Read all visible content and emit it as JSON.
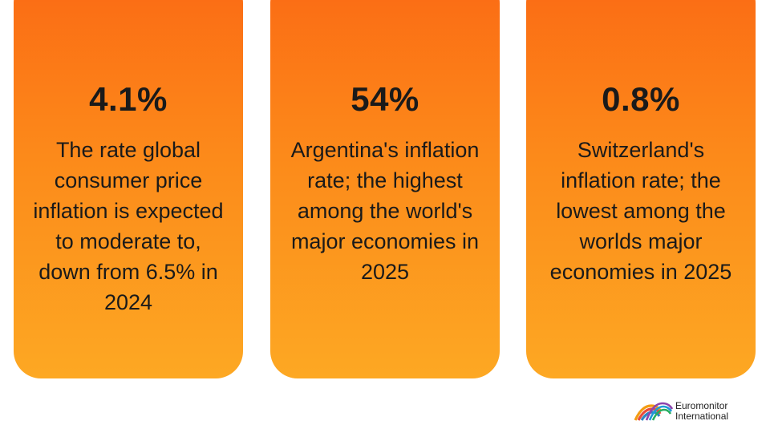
{
  "cards": [
    {
      "stat": "4.1%",
      "desc_lines": [
        "The rate global",
        "consumer price",
        "inflation is expected",
        "to moderate to,",
        "down from 6.5% in",
        "2024"
      ]
    },
    {
      "stat": "54%",
      "desc_lines": [
        "Argentina's inflation",
        "rate; the highest",
        "among the world's",
        "major economies in",
        "2025"
      ]
    },
    {
      "stat": "0.8%",
      "desc_lines": [
        "Switzerland's",
        "inflation rate; the",
        "lowest among the",
        "worlds major",
        "economies in 2025"
      ]
    }
  ],
  "logo": {
    "line1": "Euromonitor",
    "line2": "International"
  },
  "colors": {
    "card_top": "#fb6a14",
    "card_bottom": "#fda823"
  }
}
